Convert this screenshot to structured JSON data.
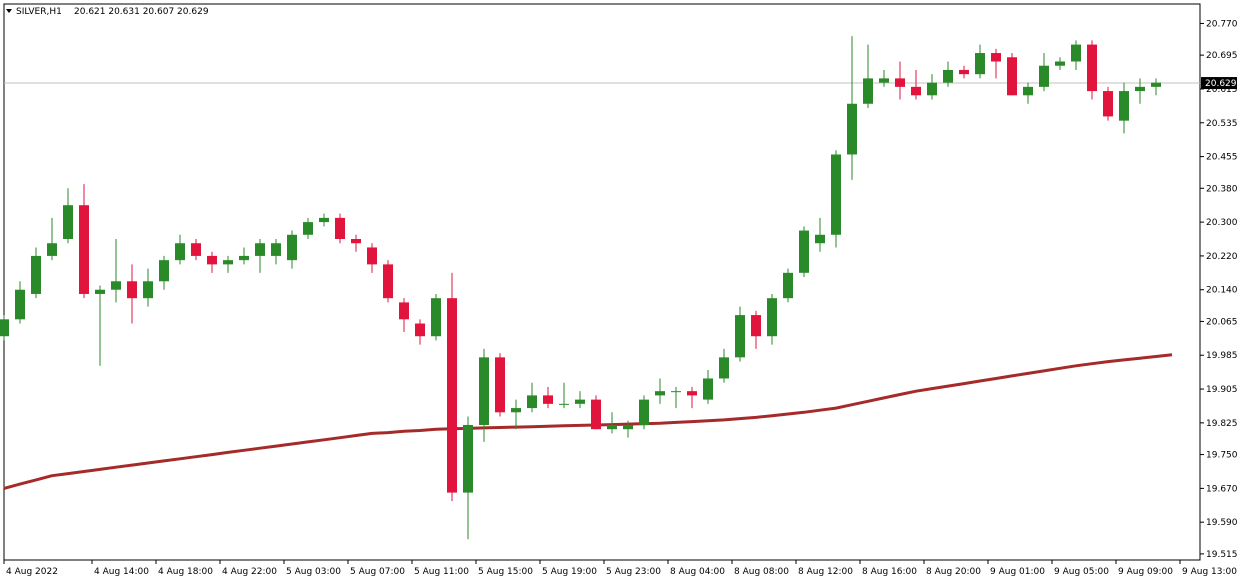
{
  "header": {
    "symbol_label": "SILVER,H1",
    "ohlc_text": "20.621 20.631 20.607 20.629"
  },
  "colors": {
    "background": "#ffffff",
    "up_candle": "#2a8a2a",
    "down_candle": "#e0143c",
    "ma_line": "#a52a2a",
    "price_line": "#c0c0c0",
    "price_tag_bg": "#000000",
    "price_tag_text": "#ffffff"
  },
  "chart_data": {
    "type": "candlestick",
    "symbol": "SILVER",
    "timeframe": "H1",
    "ylim": [
      19.51,
      20.79
    ],
    "y_ticks": [
      "20.770",
      "20.695",
      "20.615",
      "20.535",
      "20.455",
      "20.380",
      "20.300",
      "20.220",
      "20.140",
      "20.065",
      "19.985",
      "19.905",
      "19.825",
      "19.750",
      "19.670",
      "19.590",
      "19.515"
    ],
    "x_labels": [
      {
        "label": "4 Aug 2022",
        "index": 0
      },
      {
        "label": "4 Aug 14:00",
        "index": 5.5
      },
      {
        "label": "4 Aug 18:00",
        "index": 9.5
      },
      {
        "label": "4 Aug 22:00",
        "index": 13.5
      },
      {
        "label": "5 Aug 03:00",
        "index": 17.5
      },
      {
        "label": "5 Aug 07:00",
        "index": 21.5
      },
      {
        "label": "5 Aug 11:00",
        "index": 25.5
      },
      {
        "label": "5 Aug 15:00",
        "index": 29.5
      },
      {
        "label": "5 Aug 19:00",
        "index": 33.5
      },
      {
        "label": "5 Aug 23:00",
        "index": 37.5
      },
      {
        "label": "8 Aug 04:00",
        "index": 41.5
      },
      {
        "label": "8 Aug 08:00",
        "index": 45.5
      },
      {
        "label": "8 Aug 12:00",
        "index": 49.5
      },
      {
        "label": "8 Aug 16:00",
        "index": 53.5
      },
      {
        "label": "8 Aug 20:00",
        "index": 57.5
      },
      {
        "label": "9 Aug 01:00",
        "index": 61.5
      },
      {
        "label": "9 Aug 05:00",
        "index": 65.5
      },
      {
        "label": "9 Aug 09:00",
        "index": 69.5
      },
      {
        "label": "9 Aug 13:00",
        "index": 73.5
      }
    ],
    "current_price": "20.629",
    "candles": [
      {
        "o": 20.03,
        "h": 20.08,
        "l": 20.02,
        "c": 20.07
      },
      {
        "o": 20.07,
        "h": 20.16,
        "l": 20.06,
        "c": 20.14
      },
      {
        "o": 20.13,
        "h": 20.24,
        "l": 20.12,
        "c": 20.22
      },
      {
        "o": 20.22,
        "h": 20.31,
        "l": 20.21,
        "c": 20.25
      },
      {
        "o": 20.26,
        "h": 20.38,
        "l": 20.25,
        "c": 20.34
      },
      {
        "o": 20.34,
        "h": 20.39,
        "l": 20.12,
        "c": 20.13
      },
      {
        "o": 20.13,
        "h": 20.15,
        "l": 19.96,
        "c": 20.14
      },
      {
        "o": 20.14,
        "h": 20.26,
        "l": 20.11,
        "c": 20.16
      },
      {
        "o": 20.16,
        "h": 20.2,
        "l": 20.06,
        "c": 20.12
      },
      {
        "o": 20.12,
        "h": 20.19,
        "l": 20.1,
        "c": 20.16
      },
      {
        "o": 20.16,
        "h": 20.22,
        "l": 20.14,
        "c": 20.21
      },
      {
        "o": 20.21,
        "h": 20.27,
        "l": 20.2,
        "c": 20.25
      },
      {
        "o": 20.25,
        "h": 20.26,
        "l": 20.21,
        "c": 20.22
      },
      {
        "o": 20.22,
        "h": 20.23,
        "l": 20.18,
        "c": 20.2
      },
      {
        "o": 20.2,
        "h": 20.22,
        "l": 20.18,
        "c": 20.21
      },
      {
        "o": 20.21,
        "h": 20.24,
        "l": 20.2,
        "c": 20.22
      },
      {
        "o": 20.22,
        "h": 20.26,
        "l": 20.18,
        "c": 20.25
      },
      {
        "o": 20.22,
        "h": 20.26,
        "l": 20.2,
        "c": 20.25
      },
      {
        "o": 20.21,
        "h": 20.28,
        "l": 20.19,
        "c": 20.27
      },
      {
        "o": 20.27,
        "h": 20.31,
        "l": 20.26,
        "c": 20.3
      },
      {
        "o": 20.3,
        "h": 20.32,
        "l": 20.29,
        "c": 20.31
      },
      {
        "o": 20.31,
        "h": 20.32,
        "l": 20.25,
        "c": 20.26
      },
      {
        "o": 20.26,
        "h": 20.27,
        "l": 20.23,
        "c": 20.25
      },
      {
        "o": 20.24,
        "h": 20.25,
        "l": 20.18,
        "c": 20.2
      },
      {
        "o": 20.2,
        "h": 20.21,
        "l": 20.11,
        "c": 20.12
      },
      {
        "o": 20.11,
        "h": 20.12,
        "l": 20.04,
        "c": 20.07
      },
      {
        "o": 20.06,
        "h": 20.07,
        "l": 20.01,
        "c": 20.03
      },
      {
        "o": 20.03,
        "h": 20.13,
        "l": 20.02,
        "c": 20.12
      },
      {
        "o": 20.12,
        "h": 20.18,
        "l": 19.64,
        "c": 19.66
      },
      {
        "o": 19.66,
        "h": 19.84,
        "l": 19.55,
        "c": 19.82
      },
      {
        "o": 19.82,
        "h": 20.0,
        "l": 19.78,
        "c": 19.98
      },
      {
        "o": 19.98,
        "h": 19.99,
        "l": 19.84,
        "c": 19.85
      },
      {
        "o": 19.85,
        "h": 19.88,
        "l": 19.81,
        "c": 19.86
      },
      {
        "o": 19.86,
        "h": 19.92,
        "l": 19.85,
        "c": 19.89
      },
      {
        "o": 19.89,
        "h": 19.91,
        "l": 19.86,
        "c": 19.87
      },
      {
        "o": 19.87,
        "h": 19.92,
        "l": 19.86,
        "c": 19.87
      },
      {
        "o": 19.87,
        "h": 19.9,
        "l": 19.86,
        "c": 19.88
      },
      {
        "o": 19.88,
        "h": 19.89,
        "l": 19.81,
        "c": 19.81
      },
      {
        "o": 19.81,
        "h": 19.85,
        "l": 19.8,
        "c": 19.82
      },
      {
        "o": 19.81,
        "h": 19.83,
        "l": 19.79,
        "c": 19.82
      },
      {
        "o": 19.82,
        "h": 19.89,
        "l": 19.81,
        "c": 19.88
      },
      {
        "o": 19.89,
        "h": 19.93,
        "l": 19.87,
        "c": 19.9
      },
      {
        "o": 19.9,
        "h": 19.91,
        "l": 19.86,
        "c": 19.9
      },
      {
        "o": 19.9,
        "h": 19.91,
        "l": 19.86,
        "c": 19.89
      },
      {
        "o": 19.88,
        "h": 19.95,
        "l": 19.87,
        "c": 19.93
      },
      {
        "o": 19.93,
        "h": 20.0,
        "l": 19.92,
        "c": 19.98
      },
      {
        "o": 19.98,
        "h": 20.1,
        "l": 19.97,
        "c": 20.08
      },
      {
        "o": 20.08,
        "h": 20.09,
        "l": 20.0,
        "c": 20.03
      },
      {
        "o": 20.03,
        "h": 20.13,
        "l": 20.01,
        "c": 20.12
      },
      {
        "o": 20.12,
        "h": 20.19,
        "l": 20.11,
        "c": 20.18
      },
      {
        "o": 20.18,
        "h": 20.29,
        "l": 20.17,
        "c": 20.28
      },
      {
        "o": 20.25,
        "h": 20.31,
        "l": 20.23,
        "c": 20.27
      },
      {
        "o": 20.27,
        "h": 20.47,
        "l": 20.24,
        "c": 20.46
      },
      {
        "o": 20.46,
        "h": 20.74,
        "l": 20.4,
        "c": 20.58
      },
      {
        "o": 20.58,
        "h": 20.72,
        "l": 20.57,
        "c": 20.64
      },
      {
        "o": 20.63,
        "h": 20.66,
        "l": 20.62,
        "c": 20.64
      },
      {
        "o": 20.64,
        "h": 20.68,
        "l": 20.59,
        "c": 20.62
      },
      {
        "o": 20.62,
        "h": 20.66,
        "l": 20.59,
        "c": 20.6
      },
      {
        "o": 20.6,
        "h": 20.65,
        "l": 20.59,
        "c": 20.63
      },
      {
        "o": 20.63,
        "h": 20.68,
        "l": 20.62,
        "c": 20.66
      },
      {
        "o": 20.66,
        "h": 20.67,
        "l": 20.64,
        "c": 20.65
      },
      {
        "o": 20.65,
        "h": 20.72,
        "l": 20.64,
        "c": 20.7
      },
      {
        "o": 20.7,
        "h": 20.71,
        "l": 20.64,
        "c": 20.68
      },
      {
        "o": 20.69,
        "h": 20.7,
        "l": 20.6,
        "c": 20.6
      },
      {
        "o": 20.6,
        "h": 20.63,
        "l": 20.58,
        "c": 20.62
      },
      {
        "o": 20.62,
        "h": 20.7,
        "l": 20.61,
        "c": 20.67
      },
      {
        "o": 20.67,
        "h": 20.69,
        "l": 20.66,
        "c": 20.68
      },
      {
        "o": 20.68,
        "h": 20.73,
        "l": 20.66,
        "c": 20.72
      },
      {
        "o": 20.72,
        "h": 20.73,
        "l": 20.59,
        "c": 20.61
      },
      {
        "o": 20.61,
        "h": 20.62,
        "l": 20.54,
        "c": 20.55
      },
      {
        "o": 20.54,
        "h": 20.63,
        "l": 20.51,
        "c": 20.61
      },
      {
        "o": 20.61,
        "h": 20.64,
        "l": 20.58,
        "c": 20.62
      },
      {
        "o": 20.62,
        "h": 20.64,
        "l": 20.6,
        "c": 20.63
      }
    ],
    "ma_series": {
      "values": [
        19.67,
        19.68,
        19.69,
        19.7,
        19.705,
        19.71,
        19.715,
        19.72,
        19.725,
        19.73,
        19.735,
        19.74,
        19.745,
        19.75,
        19.755,
        19.76,
        19.765,
        19.77,
        19.775,
        19.78,
        19.785,
        19.79,
        19.795,
        19.8,
        19.802,
        19.805,
        19.807,
        19.81,
        19.811,
        19.812,
        19.813,
        19.814,
        19.815,
        19.816,
        19.817,
        19.818,
        19.819,
        19.82,
        19.821,
        19.822,
        19.823,
        19.824,
        19.826,
        19.828,
        19.83,
        19.832,
        19.835,
        19.838,
        19.842,
        19.846,
        19.85,
        19.855,
        19.86,
        19.868,
        19.876,
        19.884,
        19.892,
        19.9,
        19.906,
        19.912,
        19.918,
        19.924,
        19.93,
        19.936,
        19.942,
        19.948,
        19.954,
        19.96,
        19.965,
        19.97,
        19.974,
        19.978,
        19.982,
        19.986
      ]
    }
  }
}
